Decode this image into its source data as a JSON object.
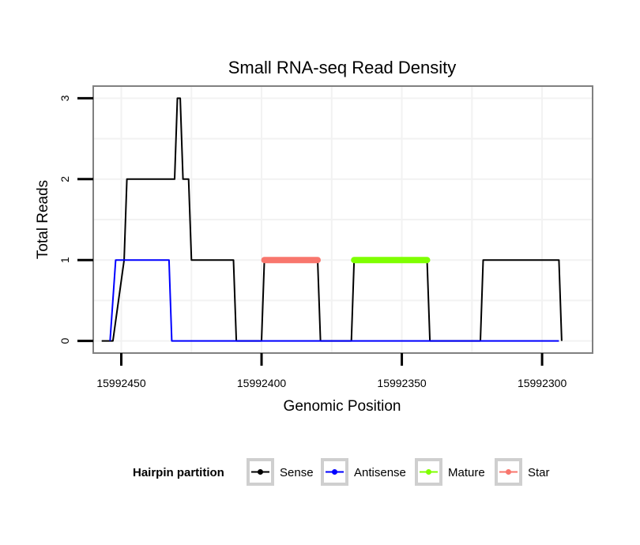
{
  "chart_data": {
    "type": "line",
    "title": "Small RNA-seq Read Density",
    "xlabel": "Genomic Position",
    "ylabel": "Total Reads",
    "x_reversed": true,
    "xlim": [
      15992460,
      15992282
    ],
    "ylim": [
      -0.15,
      3.15
    ],
    "xticks": [
      15992450,
      15992400,
      15992350,
      15992300
    ],
    "xtick_labels": [
      "15992450",
      "15992400",
      "15992350",
      "15992300"
    ],
    "yticks": [
      0,
      1,
      2,
      3
    ],
    "ytick_labels": [
      "0",
      "1",
      "2",
      "3"
    ],
    "grid": true,
    "legend": {
      "title": "Hairpin partition",
      "position": "bottom",
      "entries": [
        "Sense",
        "Antisense",
        "Mature",
        "Star"
      ]
    },
    "series": [
      {
        "name": "Sense",
        "color": "#000000",
        "width": 2,
        "points": [
          [
            15992457,
            0
          ],
          [
            15992453,
            0
          ],
          [
            15992449,
            1
          ],
          [
            15992448,
            2
          ],
          [
            15992431,
            2
          ],
          [
            15992430,
            3
          ],
          [
            15992429,
            3
          ],
          [
            15992428,
            2
          ],
          [
            15992426,
            2
          ],
          [
            15992425,
            1
          ],
          [
            15992410,
            1
          ],
          [
            15992409,
            0
          ],
          [
            15992400,
            0
          ],
          [
            15992399,
            1
          ],
          [
            15992380,
            1
          ],
          [
            15992379,
            0
          ],
          [
            15992368,
            0
          ],
          [
            15992367,
            1
          ],
          [
            15992341,
            1
          ],
          [
            15992340,
            0
          ],
          [
            15992322,
            0
          ],
          [
            15992321,
            1
          ],
          [
            15992294,
            1
          ],
          [
            15992293,
            0
          ]
        ]
      },
      {
        "name": "Antisense",
        "color": "#0000ff",
        "width": 2,
        "points": [
          [
            15992454,
            0
          ],
          [
            15992452,
            1
          ],
          [
            15992433,
            1
          ],
          [
            15992432,
            0
          ],
          [
            15992294,
            0
          ]
        ]
      },
      {
        "name": "Mature",
        "color": "#7fff00",
        "width": 8,
        "points": [
          [
            15992367,
            1
          ],
          [
            15992341,
            1
          ]
        ]
      },
      {
        "name": "Star",
        "color": "#f8766d",
        "width": 8,
        "points": [
          [
            15992399,
            1
          ],
          [
            15992380,
            1
          ]
        ]
      }
    ]
  }
}
